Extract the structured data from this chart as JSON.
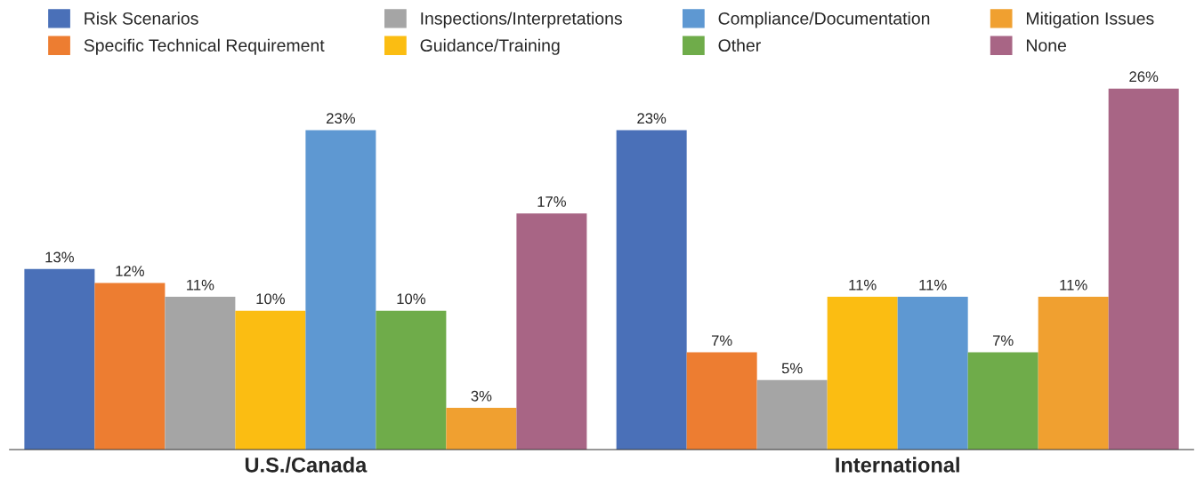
{
  "chart_data": {
    "type": "bar",
    "categories": [
      "U.S./Canada",
      "International"
    ],
    "series": [
      {
        "name": "Risk Scenarios",
        "color": "#4a70b8",
        "values": [
          13,
          23
        ],
        "value_labels": [
          "13%",
          "23%"
        ]
      },
      {
        "name": "Specific Technical Requirement",
        "color": "#ed7d31",
        "values": [
          12,
          7
        ],
        "value_labels": [
          "12%",
          "7%"
        ]
      },
      {
        "name": "Inspections/Interpretations",
        "color": "#a5a5a5",
        "values": [
          11,
          5
        ],
        "value_labels": [
          "11%",
          "5%"
        ]
      },
      {
        "name": "Guidance/Training",
        "color": "#fbbd12",
        "values": [
          10,
          11
        ],
        "value_labels": [
          "10%",
          "11%"
        ]
      },
      {
        "name": "Compliance/Documentation",
        "color": "#5e98d2",
        "values": [
          23,
          11
        ],
        "value_labels": [
          "23%",
          "11%"
        ]
      },
      {
        "name": "Other",
        "color": "#6fac4a",
        "values": [
          10,
          7
        ],
        "value_labels": [
          "10%",
          "7%"
        ]
      },
      {
        "name": "Mitigation Issues",
        "color": "#f0a030",
        "values": [
          3,
          11
        ],
        "value_labels": [
          "3%",
          "11%"
        ]
      },
      {
        "name": "None",
        "color": "#a86585",
        "values": [
          17,
          26
        ],
        "value_labels": [
          "17%",
          "26%"
        ]
      }
    ],
    "legend": "top",
    "grid": false
  }
}
